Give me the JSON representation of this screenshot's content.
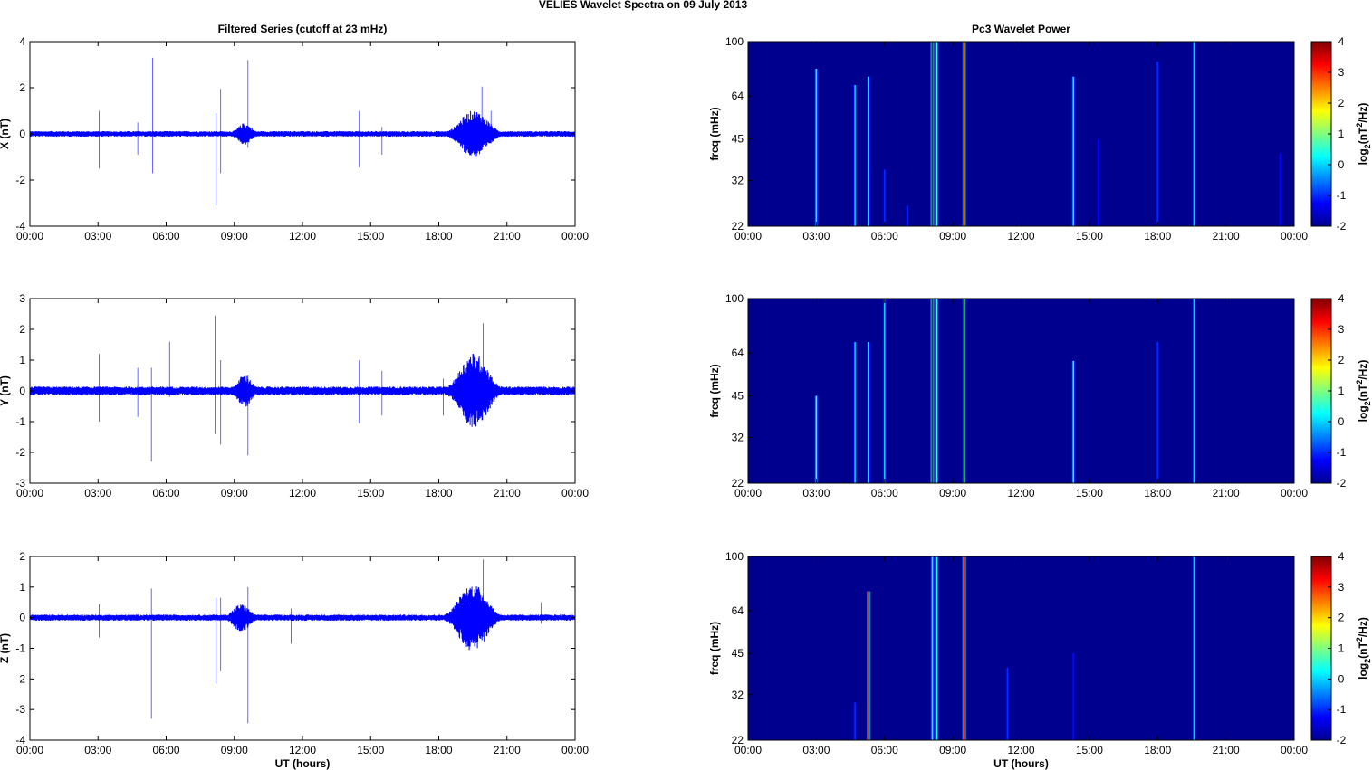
{
  "suptitle": "VELIES Wavelet Spectra on 09 July      2013",
  "colors": {
    "trace": "#0000ff",
    "background": "#00008f"
  },
  "chart_data": [
    {
      "type": "line",
      "title": "Filtered Series (cutoff at 23 mHz)",
      "xlabel": "",
      "ylabel": "X (nT)",
      "xlim": [
        0,
        24
      ],
      "ylim": [
        -4,
        4
      ],
      "yticks": [
        -4,
        -2,
        0,
        2,
        4
      ],
      "xticks": [
        "00:00",
        "03:00",
        "06:00",
        "09:00",
        "12:00",
        "15:00",
        "18:00",
        "21:00",
        "00:00"
      ],
      "spikes": [
        {
          "t": 3.05,
          "min": -1.5,
          "max": 1.0
        },
        {
          "t": 4.75,
          "min": -0.9,
          "max": 0.5
        },
        {
          "t": 5.4,
          "min": -1.7,
          "max": 3.3
        },
        {
          "t": 8.2,
          "min": -3.1,
          "max": 0.9
        },
        {
          "t": 8.4,
          "min": -1.7,
          "max": 1.95
        },
        {
          "t": 9.6,
          "min": -0.6,
          "max": 3.2
        },
        {
          "t": 14.5,
          "min": -1.45,
          "max": 1.0
        },
        {
          "t": 15.5,
          "min": -0.9,
          "max": 0.3
        },
        {
          "t": 19.9,
          "min": -0.5,
          "max": 2.05
        },
        {
          "t": 20.3,
          "min": -0.4,
          "max": 1.0
        }
      ],
      "bursts": [
        {
          "start": 8.9,
          "end": 10.0,
          "amp": 0.35
        },
        {
          "start": 18.3,
          "end": 20.8,
          "amp": 0.9
        }
      ],
      "noise_amp": 0.12
    },
    {
      "type": "line",
      "title": "",
      "xlabel": "",
      "ylabel": "Y (nT)",
      "xlim": [
        0,
        24
      ],
      "ylim": [
        -3,
        3
      ],
      "yticks": [
        -3,
        -2,
        -1,
        0,
        1,
        2,
        3
      ],
      "xticks": [
        "00:00",
        "03:00",
        "06:00",
        "09:00",
        "12:00",
        "15:00",
        "18:00",
        "21:00",
        "00:00"
      ],
      "spikes": [
        {
          "t": 3.05,
          "min": -1.0,
          "max": 1.2
        },
        {
          "t": 4.75,
          "min": -0.85,
          "max": 0.75
        },
        {
          "t": 5.35,
          "min": -2.3,
          "max": 0.75
        },
        {
          "t": 6.15,
          "min": -0.2,
          "max": 1.6
        },
        {
          "t": 8.15,
          "min": -1.4,
          "max": 2.45
        },
        {
          "t": 8.4,
          "min": -1.75,
          "max": 1.0
        },
        {
          "t": 9.6,
          "min": -2.1,
          "max": 0.5
        },
        {
          "t": 14.5,
          "min": -1.05,
          "max": 1.0
        },
        {
          "t": 15.5,
          "min": -0.8,
          "max": 0.65
        },
        {
          "t": 18.2,
          "min": -0.8,
          "max": 0.4
        },
        {
          "t": 19.95,
          "min": -0.55,
          "max": 2.2
        }
      ],
      "bursts": [
        {
          "start": 8.9,
          "end": 10.0,
          "amp": 0.4
        },
        {
          "start": 18.3,
          "end": 20.8,
          "amp": 1.1
        }
      ],
      "noise_amp": 0.14
    },
    {
      "type": "line",
      "title": "",
      "xlabel": "UT (hours)",
      "ylabel": "Z (nT)",
      "xlim": [
        0,
        24
      ],
      "ylim": [
        -4,
        2
      ],
      "yticks": [
        -4,
        -3,
        -2,
        -1,
        0,
        1,
        2
      ],
      "xticks": [
        "00:00",
        "03:00",
        "06:00",
        "09:00",
        "12:00",
        "15:00",
        "18:00",
        "21:00",
        "00:00"
      ],
      "spikes": [
        {
          "t": 3.05,
          "min": -0.65,
          "max": 0.45
        },
        {
          "t": 5.35,
          "min": -3.3,
          "max": 0.95
        },
        {
          "t": 8.2,
          "min": -2.15,
          "max": 0.65
        },
        {
          "t": 8.4,
          "min": -1.75,
          "max": 0.65
        },
        {
          "t": 9.6,
          "min": -3.45,
          "max": 1.0
        },
        {
          "t": 11.5,
          "min": -0.85,
          "max": 0.3
        },
        {
          "t": 19.95,
          "min": -0.3,
          "max": 1.9
        },
        {
          "t": 22.5,
          "min": -0.2,
          "max": 0.5
        }
      ],
      "bursts": [
        {
          "start": 8.6,
          "end": 10.0,
          "amp": 0.35
        },
        {
          "start": 18.2,
          "end": 20.8,
          "amp": 1.0
        }
      ],
      "noise_amp": 0.1
    },
    {
      "type": "heatmap",
      "title": "Pc3 Wavelet Power",
      "xlabel": "",
      "ylabel": "freq (mHz)",
      "colorbar_label": "log2(nT2/Hz)",
      "xlim": [
        0,
        24
      ],
      "ylim": [
        22,
        100
      ],
      "yticks": [
        22,
        32,
        45,
        64,
        100
      ],
      "clim": [
        -2,
        4
      ],
      "cticks": [
        -2,
        -1,
        0,
        1,
        2,
        3,
        4
      ],
      "xticks": [
        "00:00",
        "03:00",
        "06:00",
        "09:00",
        "12:00",
        "15:00",
        "18:00",
        "21:00",
        "00:00"
      ],
      "background": -2,
      "streaks": [
        {
          "t": 3.0,
          "fmax": 80,
          "value": 0.5
        },
        {
          "t": 4.7,
          "fmax": 70,
          "value": 0.0
        },
        {
          "t": 5.3,
          "fmax": 75,
          "value": 0.3
        },
        {
          "t": 6.0,
          "fmax": 35,
          "value": -1.0
        },
        {
          "t": 7.0,
          "fmax": 26,
          "value": -1.0
        },
        {
          "t": 8.1,
          "fmax": 100,
          "value": 3.8
        },
        {
          "t": 8.3,
          "fmax": 100,
          "value": 0.5
        },
        {
          "t": 9.5,
          "fmax": 100,
          "value": 2.5
        },
        {
          "t": 14.3,
          "fmax": 75,
          "value": 0.3
        },
        {
          "t": 15.4,
          "fmax": 45,
          "value": -1.2
        },
        {
          "t": 18.0,
          "fmax": 85,
          "value": -1.0
        },
        {
          "t": 19.6,
          "fmax": 100,
          "value": 0.0
        },
        {
          "t": 23.4,
          "fmax": 40,
          "value": -1.2
        }
      ]
    },
    {
      "type": "heatmap",
      "title": "",
      "xlabel": "",
      "ylabel": "freq (mHz)",
      "colorbar_label": "log2(nT2/Hz)",
      "xlim": [
        0,
        24
      ],
      "ylim": [
        22,
        100
      ],
      "yticks": [
        22,
        32,
        45,
        64,
        100
      ],
      "clim": [
        -2,
        4
      ],
      "cticks": [
        -2,
        -1,
        0,
        1,
        2,
        3,
        4
      ],
      "xticks": [
        "00:00",
        "03:00",
        "06:00",
        "09:00",
        "12:00",
        "15:00",
        "18:00",
        "21:00",
        "00:00"
      ],
      "background": -2,
      "streaks": [
        {
          "t": 3.0,
          "fmax": 45,
          "value": 0.8
        },
        {
          "t": 4.7,
          "fmax": 70,
          "value": 0.0
        },
        {
          "t": 5.3,
          "fmax": 70,
          "value": 0.3
        },
        {
          "t": 6.0,
          "fmax": 100,
          "value": 0.0
        },
        {
          "t": 8.1,
          "fmax": 100,
          "value": 3.8
        },
        {
          "t": 8.3,
          "fmax": 100,
          "value": 0.5
        },
        {
          "t": 9.5,
          "fmax": 100,
          "value": 1.0
        },
        {
          "t": 14.3,
          "fmax": 60,
          "value": 0.5
        },
        {
          "t": 18.0,
          "fmax": 70,
          "value": -1.0
        },
        {
          "t": 19.6,
          "fmax": 100,
          "value": 0.0
        }
      ]
    },
    {
      "type": "heatmap",
      "title": "",
      "xlabel": "UT (hours)",
      "ylabel": "freq (mHz)",
      "colorbar_label": "log2(nT2/Hz)",
      "xlim": [
        0,
        24
      ],
      "ylim": [
        22,
        100
      ],
      "yticks": [
        22,
        32,
        45,
        64,
        100
      ],
      "clim": [
        -2,
        4
      ],
      "cticks": [
        -2,
        -1,
        0,
        1,
        2,
        3,
        4
      ],
      "xticks": [
        "00:00",
        "03:00",
        "06:00",
        "09:00",
        "12:00",
        "15:00",
        "18:00",
        "21:00",
        "00:00"
      ],
      "background": -2,
      "streaks": [
        {
          "t": 4.7,
          "fmax": 30,
          "value": -1.0
        },
        {
          "t": 5.3,
          "fmax": 75,
          "value": 3.0
        },
        {
          "t": 8.1,
          "fmax": 100,
          "value": 0.5
        },
        {
          "t": 8.3,
          "fmax": 100,
          "value": 0.3
        },
        {
          "t": 9.5,
          "fmax": 100,
          "value": 3.5
        },
        {
          "t": 11.4,
          "fmax": 40,
          "value": -1.0
        },
        {
          "t": 14.3,
          "fmax": 45,
          "value": -1.2
        },
        {
          "t": 19.6,
          "fmax": 100,
          "value": 0.0
        }
      ]
    }
  ]
}
